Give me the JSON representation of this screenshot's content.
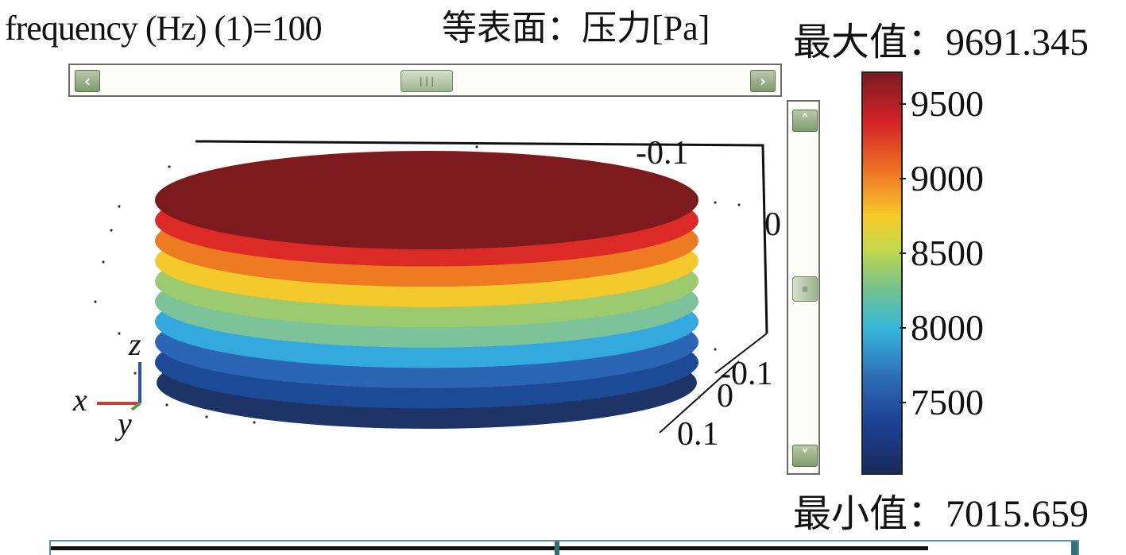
{
  "header": {
    "frequency_label": "frequency (Hz) (1)=100",
    "surface_label": "等表面：压力[Pa]",
    "max_label": "最大值：9691.345",
    "min_label": "最小值：7015.659"
  },
  "colorbar": {
    "ticks": [
      "9500",
      "9000",
      "8500",
      "8000",
      "7500"
    ],
    "range": [
      7015.659,
      9691.345
    ],
    "colormap": [
      "#1a2a5a",
      "#1c3f92",
      "#2d6db5",
      "#35b6dc",
      "#73c28e",
      "#c5d84a",
      "#f6cc2a",
      "#ee6f22",
      "#d32128",
      "#7a1c1f"
    ]
  },
  "axes": {
    "y_labels_top": [
      "-0.1",
      "0"
    ],
    "x_labels_front": [
      "-0.1",
      "0",
      "0.1"
    ],
    "triad": {
      "x": "x",
      "y": "y",
      "z": "z"
    }
  },
  "plot": {
    "layer_colors": [
      "#1e3467",
      "#1d4a96",
      "#2a66b3",
      "#33a9de",
      "#7cc39a",
      "#9ccb6f",
      "#f3c92b",
      "#ee7a22",
      "#dc2a26",
      "#7c1a1e"
    ]
  },
  "scrollbars": {
    "horizontal": {
      "left_icon": "arrow-left-icon",
      "right_icon": "arrow-right-icon",
      "thumb_grip": "|||"
    },
    "vertical": {
      "up_icon": "arrow-up-icon",
      "down_icon": "arrow-down-icon",
      "thumb_grip": "≡"
    }
  }
}
